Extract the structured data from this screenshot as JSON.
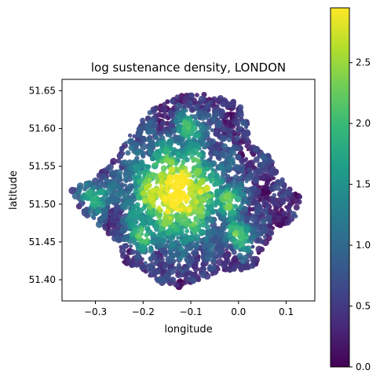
{
  "chart_data": {
    "type": "scatter",
    "title": "log sustenance density, LONDON",
    "xlabel": "longitude",
    "ylabel": "latitude",
    "xlim": [
      -0.37,
      0.16
    ],
    "ylim": [
      51.372,
      51.665
    ],
    "xticks": [
      {
        "value": -0.3,
        "label": "−0.3"
      },
      {
        "value": -0.2,
        "label": "−0.2"
      },
      {
        "value": -0.1,
        "label": "−0.1"
      },
      {
        "value": 0.0,
        "label": "0.0"
      },
      {
        "value": 0.1,
        "label": "0.1"
      }
    ],
    "yticks": [
      {
        "value": 51.4,
        "label": "51.40"
      },
      {
        "value": 51.45,
        "label": "51.45"
      },
      {
        "value": 51.5,
        "label": "51.50"
      },
      {
        "value": 51.55,
        "label": "51.55"
      },
      {
        "value": 51.6,
        "label": "51.60"
      },
      {
        "value": 51.65,
        "label": "51.65"
      }
    ],
    "colormap": "viridis",
    "colorbar": {
      "range": [
        0.0,
        2.95
      ],
      "ticks": [
        {
          "value": 0.0,
          "label": "0.0"
        },
        {
          "value": 0.5,
          "label": "0.5"
        },
        {
          "value": 1.0,
          "label": "1.0"
        },
        {
          "value": 1.5,
          "label": "1.5"
        },
        {
          "value": 2.0,
          "label": "2.0"
        },
        {
          "value": 2.5,
          "label": "2.5"
        }
      ]
    },
    "grid": false,
    "density_summary": {
      "center_lon": -0.13,
      "center_lat": 51.515,
      "max_value": 2.9,
      "secondary_peaks": [
        {
          "lon": -0.08,
          "lat": 51.52,
          "value": 2.6
        },
        {
          "lon": -0.02,
          "lat": 51.505,
          "value": 2.1
        },
        {
          "lon": -0.19,
          "lat": 51.51,
          "value": 2.2
        },
        {
          "lon": -0.1,
          "lat": 51.55,
          "value": 2.0
        },
        {
          "lon": -0.2,
          "lat": 51.46,
          "value": 1.9
        },
        {
          "lon": 0.0,
          "lat": 51.46,
          "value": 1.8
        },
        {
          "lon": -0.3,
          "lat": 51.51,
          "value": 1.6
        },
        {
          "lon": -0.1,
          "lat": 51.6,
          "value": 1.7
        }
      ],
      "boundary": [
        [
          -0.12,
          51.645
        ],
        [
          -0.07,
          51.645
        ],
        [
          0.0,
          51.635
        ],
        [
          0.02,
          51.615
        ],
        [
          0.02,
          51.58
        ],
        [
          0.06,
          51.57
        ],
        [
          0.08,
          51.545
        ],
        [
          0.1,
          51.525
        ],
        [
          0.13,
          51.51
        ],
        [
          0.12,
          51.48
        ],
        [
          0.08,
          51.47
        ],
        [
          0.06,
          51.45
        ],
        [
          0.04,
          51.42
        ],
        [
          0.01,
          51.41
        ],
        [
          -0.04,
          51.41
        ],
        [
          -0.08,
          51.4
        ],
        [
          -0.12,
          51.39
        ],
        [
          -0.16,
          51.395
        ],
        [
          -0.2,
          51.41
        ],
        [
          -0.24,
          51.42
        ],
        [
          -0.25,
          51.45
        ],
        [
          -0.29,
          51.47
        ],
        [
          -0.33,
          51.49
        ],
        [
          -0.35,
          51.52
        ],
        [
          -0.31,
          51.53
        ],
        [
          -0.27,
          51.55
        ],
        [
          -0.25,
          51.57
        ],
        [
          -0.22,
          51.6
        ],
        [
          -0.18,
          51.625
        ],
        [
          -0.16,
          51.635
        ]
      ]
    }
  }
}
